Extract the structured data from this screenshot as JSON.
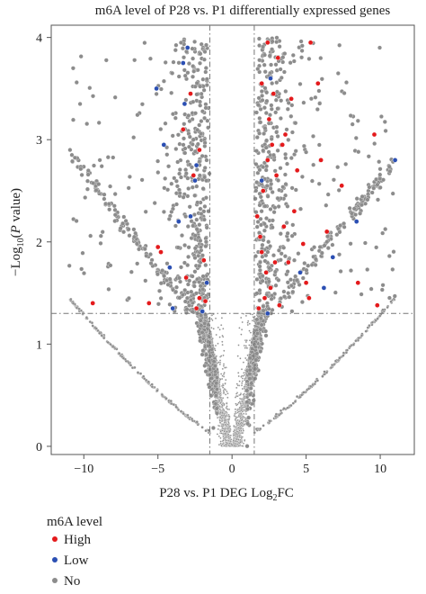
{
  "chart_data": {
    "type": "scatter",
    "title": "m6A level of P28 vs. P1 differentially expressed genes",
    "xlabel": {
      "prefix": "P28 vs. P1 DEG Log",
      "sub": "2",
      "suffix": "FC"
    },
    "ylabel": {
      "prefix": "−Log",
      "sub": "10",
      "open": "(",
      "ital": "P",
      "suffix": " value)"
    },
    "xlim": [
      -12.2,
      12.3
    ],
    "ylim": [
      -0.08,
      4.12
    ],
    "xticks": [
      -10,
      -5,
      0,
      5,
      10
    ],
    "xtick_labels": [
      "−10",
      "−5",
      "0",
      "5",
      "10"
    ],
    "yticks": [
      0,
      1,
      2,
      3,
      4
    ],
    "ytick_labels": [
      "0",
      "1",
      "2",
      "3",
      "4"
    ],
    "threshold_lines": {
      "x": [
        -1.5,
        1.5
      ],
      "y": 1.3
    },
    "legend": {
      "title": "m6A level",
      "placement": "bottom-left",
      "entries": [
        {
          "label": "High",
          "color": "#e41a1c"
        },
        {
          "label": "Low",
          "color": "#2b4fb3"
        },
        {
          "label": "No",
          "color": "#8c8c8c"
        }
      ]
    },
    "series": [
      {
        "name": "High",
        "color": "#e41a1c",
        "points": [
          [
            -5.6,
            1.4
          ],
          [
            -5.0,
            1.95
          ],
          [
            -4.8,
            1.9
          ],
          [
            -3.1,
            1.65
          ],
          [
            -2.8,
            3.45
          ],
          [
            -2.6,
            2.65
          ],
          [
            -2.4,
            1.35
          ],
          [
            -2.2,
            1.45
          ],
          [
            -1.9,
            1.82
          ],
          [
            -1.8,
            1.42
          ],
          [
            -9.4,
            1.4
          ],
          [
            -3.3,
            3.1
          ],
          [
            -2.2,
            2.9
          ],
          [
            1.7,
            2.25
          ],
          [
            1.8,
            1.35
          ],
          [
            1.9,
            2.05
          ],
          [
            2.0,
            1.9
          ],
          [
            2.1,
            2.5
          ],
          [
            2.0,
            3.55
          ],
          [
            2.2,
            1.45
          ],
          [
            2.3,
            1.7
          ],
          [
            2.4,
            2.8
          ],
          [
            2.5,
            3.2
          ],
          [
            2.6,
            1.55
          ],
          [
            2.7,
            2.95
          ],
          [
            2.8,
            3.45
          ],
          [
            3.0,
            2.65
          ],
          [
            3.2,
            1.38
          ],
          [
            3.4,
            2.95
          ],
          [
            3.5,
            2.15
          ],
          [
            3.6,
            3.05
          ],
          [
            3.8,
            1.8
          ],
          [
            4.0,
            3.4
          ],
          [
            4.4,
            2.7
          ],
          [
            4.8,
            1.98
          ],
          [
            5.0,
            1.6
          ],
          [
            5.2,
            1.45
          ],
          [
            5.3,
            3.95
          ],
          [
            6.0,
            2.8
          ],
          [
            6.4,
            2.1
          ],
          [
            7.4,
            2.55
          ],
          [
            8.5,
            1.6
          ],
          [
            9.6,
            3.05
          ],
          [
            9.8,
            1.38
          ],
          [
            2.4,
            3.95
          ],
          [
            3.1,
            3.8
          ],
          [
            5.8,
            3.55
          ],
          [
            4.2,
            2.3
          ],
          [
            2.9,
            1.8
          ]
        ]
      },
      {
        "name": "Low",
        "color": "#2b4fb3",
        "points": [
          [
            -5.1,
            3.5
          ],
          [
            -4.6,
            2.95
          ],
          [
            -4.2,
            1.75
          ],
          [
            -3.6,
            2.2
          ],
          [
            -3.3,
            3.75
          ],
          [
            -3.0,
            3.9
          ],
          [
            -2.8,
            2.25
          ],
          [
            -2.5,
            2.6
          ],
          [
            -2.4,
            2.75
          ],
          [
            -2.0,
            1.32
          ],
          [
            -1.7,
            1.6
          ],
          [
            -3.2,
            3.35
          ],
          [
            -4.0,
            1.35
          ],
          [
            2.0,
            2.6
          ],
          [
            2.4,
            1.3
          ],
          [
            4.6,
            1.7
          ],
          [
            6.2,
            1.55
          ],
          [
            6.8,
            1.85
          ],
          [
            11.0,
            2.8
          ],
          [
            8.4,
            2.2
          ],
          [
            2.6,
            3.6
          ]
        ]
      }
    ]
  }
}
